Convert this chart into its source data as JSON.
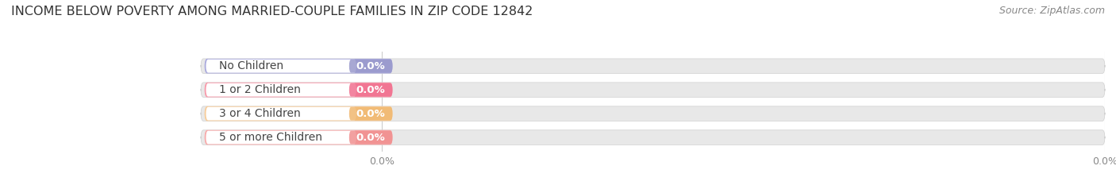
{
  "title": "INCOME BELOW POVERTY AMONG MARRIED-COUPLE FAMILIES IN ZIP CODE 12842",
  "source": "Source: ZipAtlas.com",
  "categories": [
    "No Children",
    "1 or 2 Children",
    "3 or 4 Children",
    "5 or more Children"
  ],
  "values": [
    0.0,
    0.0,
    0.0,
    0.0
  ],
  "bar_colors": [
    "#9999cc",
    "#f07090",
    "#f0b870",
    "#f09090"
  ],
  "bar_colors_light": [
    "#aaaadd",
    "#f899aa",
    "#f8cc99",
    "#f8aaaa"
  ],
  "bar_bg_color": "#e8e8e8",
  "background_color": "#ffffff",
  "title_fontsize": 11.5,
  "label_fontsize": 10,
  "value_fontsize": 9.5,
  "source_fontsize": 9
}
